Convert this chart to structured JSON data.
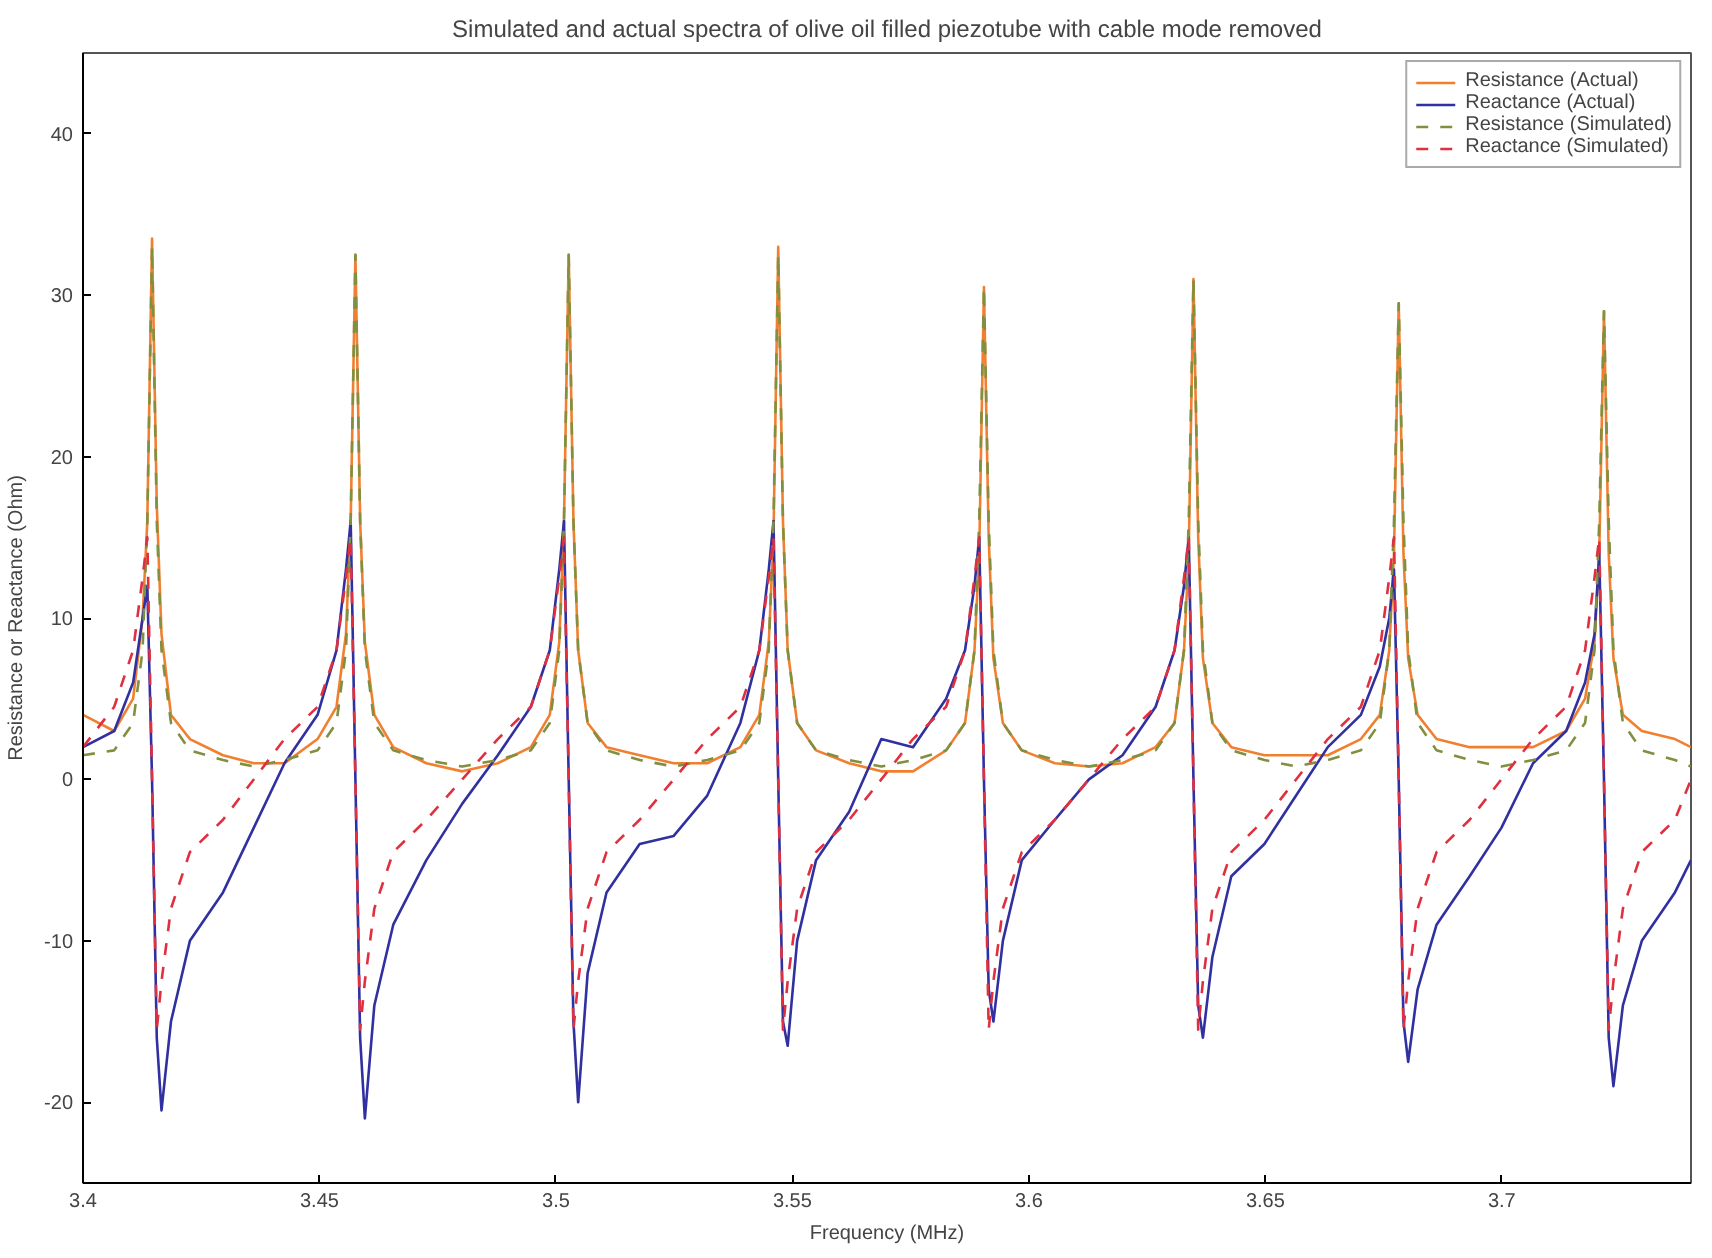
{
  "chart_data": {
    "type": "line",
    "title": "Simulated and actual spectra of olive oil filled piezotube with cable mode removed",
    "xlabel": "Frequency (MHz)",
    "ylabel": "Resistance or Reactance (Ohm)",
    "xlim": [
      3.4,
      3.74
    ],
    "xticks": [
      3.4,
      3.45,
      3.5,
      3.55,
      3.6,
      3.65,
      3.7
    ],
    "ylim": [
      -25,
      45
    ],
    "yticks": [
      -20,
      -10,
      0,
      10,
      20,
      30,
      40
    ],
    "grid": false,
    "legend": "top right",
    "x": [
      3.4,
      3.4066,
      3.4106,
      3.4126,
      3.4136,
      3.4146,
      3.4156,
      3.4166,
      3.4186,
      3.4226,
      3.4296,
      3.4361,
      3.4426,
      3.4496,
      3.4536,
      3.4556,
      3.4566,
      3.4576,
      3.4586,
      3.4596,
      3.4616,
      3.4656,
      3.4726,
      3.4802,
      3.4877,
      3.4947,
      3.4987,
      3.5007,
      3.5017,
      3.5027,
      3.5037,
      3.5047,
      3.5067,
      3.5107,
      3.5177,
      3.5249,
      3.532,
      3.539,
      3.543,
      3.545,
      3.546,
      3.547,
      3.548,
      3.549,
      3.551,
      3.555,
      3.562,
      3.5688,
      3.5755,
      3.5825,
      3.5865,
      3.5885,
      3.5895,
      3.5905,
      3.5915,
      3.5925,
      3.5945,
      3.5985,
      3.6055,
      3.6127,
      3.6198,
      3.6268,
      3.6308,
      3.6328,
      3.6338,
      3.6348,
      3.6358,
      3.6368,
      3.6388,
      3.6428,
      3.6498,
      3.6565,
      3.6632,
      3.6702,
      3.6742,
      3.6762,
      3.6772,
      3.6782,
      3.6792,
      3.6802,
      3.6822,
      3.6862,
      3.6932,
      3.6999,
      3.7066,
      3.7136,
      3.7176,
      3.7196,
      3.7206,
      3.7216,
      3.7226,
      3.7236,
      3.7256,
      3.7296,
      3.7366,
      3.74
    ],
    "series": [
      {
        "name": "Resistance (Actual)",
        "color": "#f08030",
        "line_style": "solid",
        "values": [
          4,
          3,
          5,
          10,
          16,
          33.5,
          17,
          9,
          4,
          2.5,
          1.5,
          1,
          1,
          2.5,
          4.5,
          9,
          16,
          32.5,
          16,
          8.5,
          4,
          2,
          1,
          0.5,
          1,
          2,
          4,
          8.5,
          16,
          32.5,
          16,
          8,
          3.5,
          2,
          1.5,
          1,
          1,
          2,
          4,
          8.5,
          15,
          33,
          16,
          8,
          3.5,
          1.8,
          1,
          0.5,
          0.5,
          1.8,
          3.5,
          8,
          14,
          30.5,
          15,
          7.5,
          3.5,
          1.8,
          1,
          0.8,
          1,
          2,
          3.5,
          8,
          14,
          31,
          15,
          7.5,
          3.5,
          2,
          1.5,
          1.5,
          1.5,
          2.5,
          4,
          8,
          14,
          29.5,
          14,
          7.5,
          4,
          2.5,
          2,
          2,
          2,
          3,
          5,
          8.5,
          14,
          29,
          14,
          7.5,
          4,
          3,
          2.5,
          2
        ]
      },
      {
        "name": "Reactance (Actual)",
        "color": "#3030a0",
        "line_style": "solid",
        "values": [
          2,
          3,
          6,
          10,
          12,
          0,
          -16,
          -20.5,
          -15,
          -10,
          -7,
          -3,
          1,
          4,
          8,
          13,
          16,
          0,
          -16,
          -21,
          -14,
          -9,
          -5,
          -1.5,
          1.5,
          4.5,
          8,
          13,
          16,
          0,
          -15,
          -20,
          -12,
          -7,
          -4,
          -3.5,
          -1,
          3.5,
          8,
          13,
          16,
          0,
          -15,
          -16.5,
          -10,
          -5,
          -2,
          2.5,
          2,
          5,
          8,
          12,
          15,
          0,
          -13,
          -15,
          -10,
          -5,
          -2.5,
          0,
          1.5,
          4.5,
          8,
          12,
          15,
          0,
          -14,
          -16,
          -11,
          -6,
          -4,
          -1,
          2,
          4,
          7,
          10,
          13,
          0,
          -15,
          -17.5,
          -13,
          -9,
          -6,
          -3,
          1,
          3,
          6,
          9,
          14,
          0,
          -16,
          -19,
          -14,
          -10,
          -7,
          -5
        ]
      },
      {
        "name": "Resistance (Simulated)",
        "color": "#809040",
        "line_style": "dashed",
        "values": [
          1.5,
          1.8,
          3.5,
          8,
          16,
          33,
          16,
          8,
          3.5,
          1.8,
          1.2,
          0.8,
          1.2,
          1.8,
          3.5,
          8,
          16,
          32.5,
          16,
          8,
          3.5,
          1.8,
          1.2,
          0.8,
          1.2,
          1.8,
          3.5,
          8,
          16,
          32.5,
          16,
          8,
          3.5,
          1.8,
          1.2,
          0.8,
          1.2,
          1.8,
          3.5,
          8,
          16,
          32.5,
          16,
          8,
          3.5,
          1.8,
          1.2,
          0.8,
          1.2,
          1.8,
          3.5,
          8,
          16,
          30.5,
          16,
          8,
          3.5,
          1.8,
          1.2,
          0.8,
          1.2,
          1.8,
          3.5,
          8,
          16,
          31,
          16,
          8,
          3.5,
          1.8,
          1.2,
          0.8,
          1.2,
          1.8,
          3.5,
          8,
          16,
          29.5,
          16,
          8,
          3.5,
          1.8,
          1.2,
          0.8,
          1.2,
          1.8,
          3.5,
          8,
          16,
          29,
          16,
          8,
          3.5,
          1.8,
          1.2,
          0.8
        ]
      },
      {
        "name": "Reactance (Simulated)",
        "color": "#e03040",
        "line_style": "dashed",
        "values": [
          2,
          4.5,
          8,
          12.5,
          15,
          0,
          -15.5,
          -12.5,
          -8,
          -4.5,
          -2.5,
          0,
          2.5,
          4.5,
          8,
          12.5,
          15,
          0,
          -15.5,
          -12.5,
          -8,
          -4.5,
          -2.5,
          0,
          2.5,
          4.5,
          8,
          12.5,
          15,
          0,
          -15.5,
          -12.5,
          -8,
          -4.5,
          -2.5,
          0,
          2.5,
          4.5,
          8,
          12.5,
          15,
          0,
          -15.5,
          -12.5,
          -8,
          -4.5,
          -2.5,
          0,
          2.5,
          4.5,
          8,
          12.5,
          15,
          0,
          -15.5,
          -12.5,
          -8,
          -4.5,
          -2.5,
          0,
          2.5,
          4.5,
          8,
          12.5,
          15,
          0,
          -15.5,
          -12.5,
          -8,
          -4.5,
          -2.5,
          0,
          2.5,
          4.5,
          8,
          12.5,
          15,
          0,
          -15.5,
          -12.5,
          -8,
          -4.5,
          -2.5,
          0,
          2.5,
          4.5,
          8,
          12.5,
          15,
          0,
          -15.5,
          -12.5,
          -8,
          -4.5,
          -2.5,
          0
        ]
      }
    ]
  }
}
